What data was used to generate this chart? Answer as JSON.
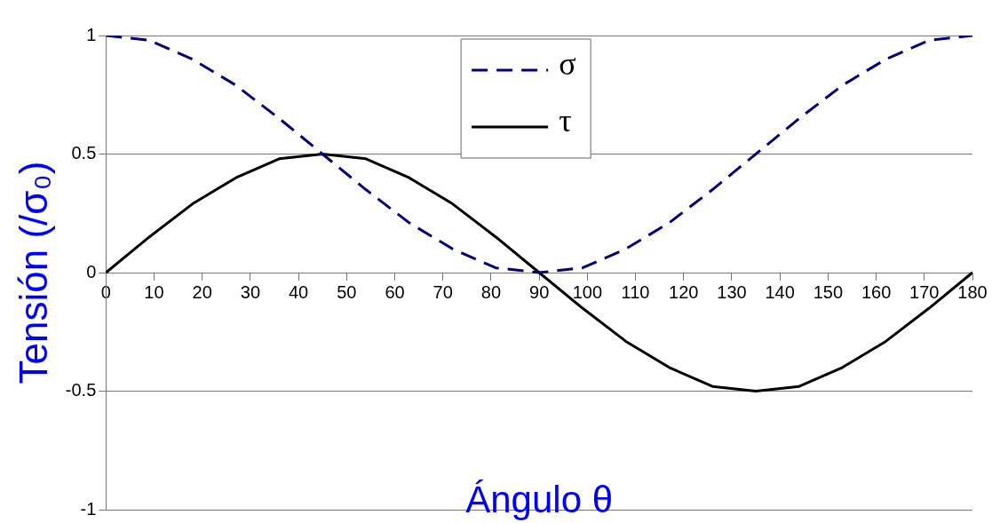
{
  "chart_data": {
    "type": "line",
    "xlabel": "Ángulo θ",
    "ylabel": "Tensión (/σ₀)",
    "x": [
      0,
      9,
      18,
      27,
      36,
      45,
      54,
      63,
      72,
      81,
      90,
      99,
      108,
      117,
      126,
      135,
      144,
      153,
      162,
      171,
      180
    ],
    "series": [
      {
        "name": "σ",
        "color": "#000080",
        "line_style": "dashed",
        "values": [
          1,
          0.98,
          0.9,
          0.79,
          0.65,
          0.5,
          0.35,
          0.21,
          0.1,
          0.02,
          0,
          0.02,
          0.1,
          0.21,
          0.35,
          0.5,
          0.65,
          0.79,
          0.9,
          0.98,
          1
        ]
      },
      {
        "name": "τ",
        "color": "#000000",
        "line_style": "solid",
        "values": [
          0,
          0.15,
          0.29,
          0.4,
          0.48,
          0.5,
          0.48,
          0.4,
          0.29,
          0.15,
          0,
          -0.15,
          -0.29,
          -0.4,
          -0.48,
          -0.5,
          -0.48,
          -0.4,
          -0.29,
          -0.15,
          0
        ]
      }
    ],
    "xlim": [
      0,
      180
    ],
    "xticks": [
      0,
      10,
      20,
      30,
      40,
      50,
      60,
      70,
      80,
      90,
      100,
      110,
      120,
      130,
      140,
      150,
      160,
      170,
      180
    ],
    "ylim": [
      -1,
      1
    ],
    "yticks": [
      -1,
      -0.5,
      0,
      0.5,
      1
    ],
    "grid": "y",
    "legend": "top",
    "marker": "none"
  }
}
